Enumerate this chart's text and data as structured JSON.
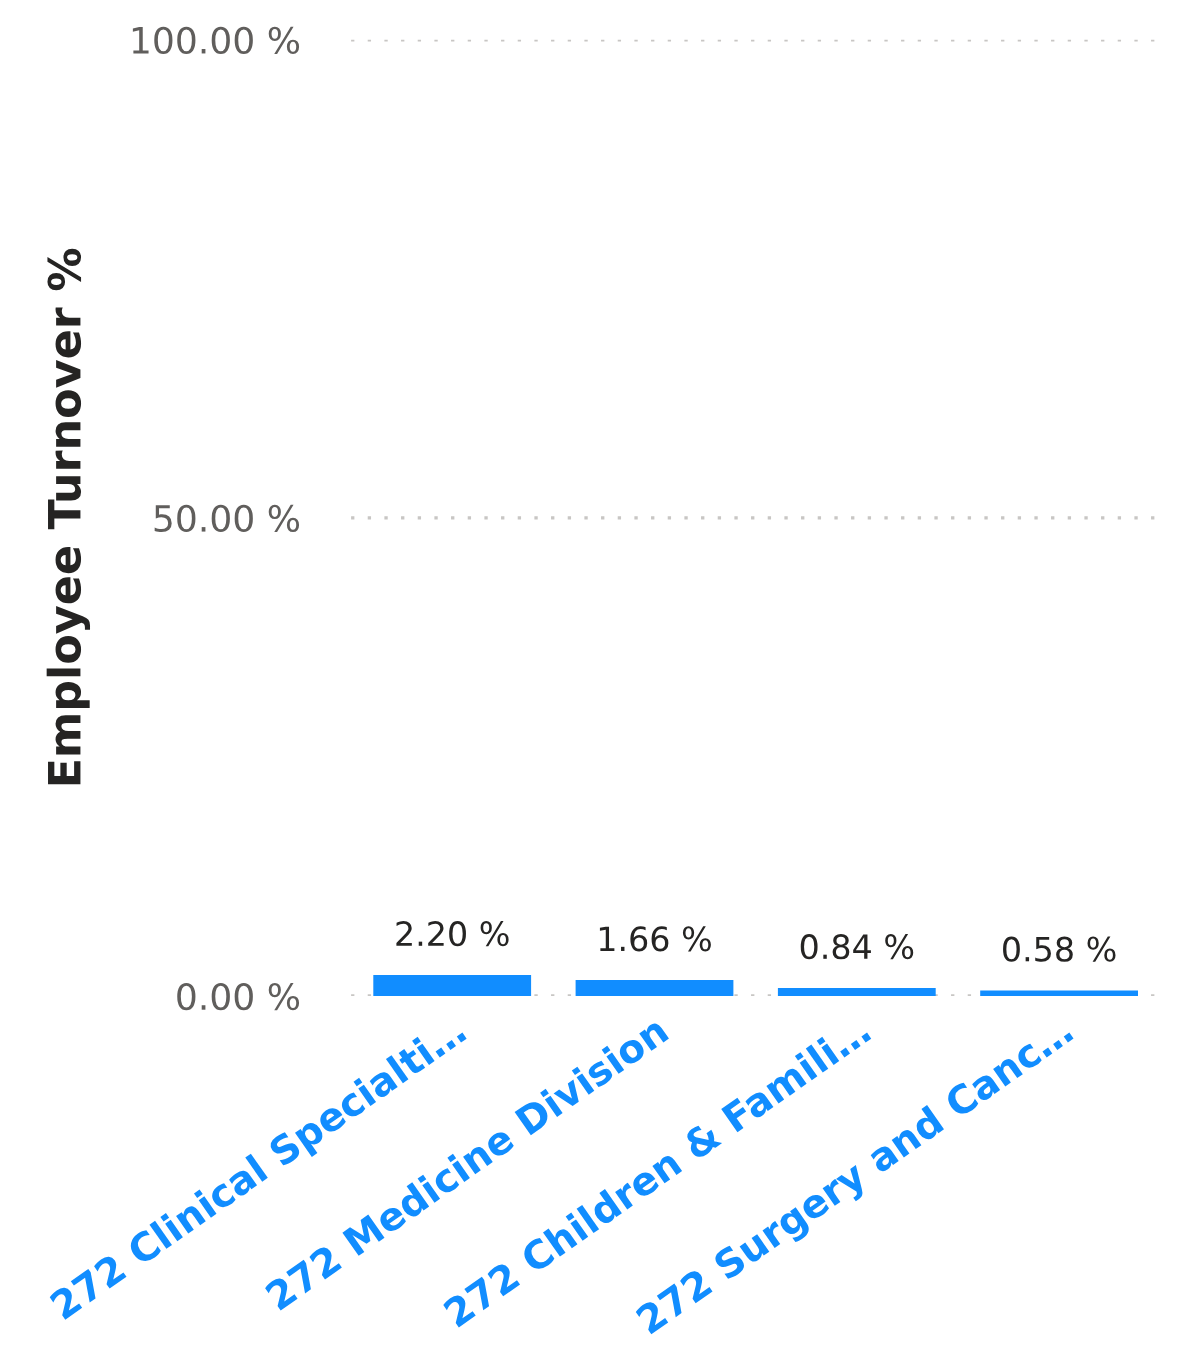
{
  "chart_data": {
    "type": "bar",
    "ylabel": "Employee Turnover %",
    "categories": [
      "272 Clinical Specialti…",
      "272 Medicine Division",
      "272 Children & Famili…",
      "272 Surgery and Canc…"
    ],
    "values": [
      2.2,
      1.66,
      0.84,
      0.58
    ],
    "color": "#118dff",
    "value_labels": [
      "2.20 %",
      "1.66 %",
      "0.84 %",
      "0.58 %"
    ],
    "ylim": [
      0,
      100
    ],
    "yticks": [
      {
        "value": 0,
        "label": "0.00 %"
      },
      {
        "value": 50,
        "label": "50.00 %"
      },
      {
        "value": 100,
        "label": "100.00 %"
      }
    ],
    "grid": "y",
    "legend": false
  }
}
